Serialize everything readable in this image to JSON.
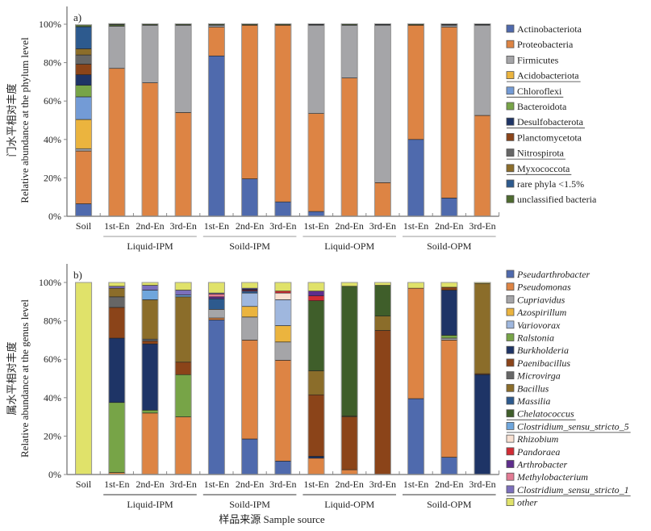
{
  "xlabel": "样品来源 Sample source",
  "categories": [
    "Soil",
    "1st-En",
    "2nd-En",
    "3rd-En",
    "1st-En",
    "2nd-En",
    "3rd-En",
    "1st-En",
    "2nd-En",
    "3rd-En",
    "1st-En",
    "2nd-En",
    "3rd-En"
  ],
  "groups": [
    {
      "label": "Liquid-IPM",
      "from": 1,
      "to": 3
    },
    {
      "label": "Soild-IPM",
      "from": 4,
      "to": 6
    },
    {
      "label": "Liquid-OPM",
      "from": 7,
      "to": 9
    },
    {
      "label": "Soild-OPM",
      "from": 10,
      "to": 12
    }
  ],
  "chart_data": [
    {
      "type": "bar",
      "stacked": true,
      "panel_label": "a)",
      "title": "",
      "ylabel_cn": "门水平相对丰度",
      "ylabel": "Relative abundance at the phylum level",
      "xlabel": "样品来源 Sample source",
      "ylim": [
        0,
        100
      ],
      "yticks": [
        "0%",
        "20%",
        "40%",
        "60%",
        "80%",
        "100%"
      ],
      "legend_position": "right",
      "categories": [
        "Soil",
        "1st-En",
        "2nd-En",
        "3rd-En",
        "1st-En",
        "2nd-En",
        "3rd-En",
        "1st-En",
        "2nd-En",
        "3rd-En",
        "1st-En",
        "2nd-En",
        "3rd-En"
      ],
      "series": [
        {
          "name": "Actinobacteriota",
          "color": "#4f6aad",
          "underline": false,
          "values": [
            6.5,
            0,
            0,
            0,
            83.5,
            19.5,
            7.5,
            2.5,
            0,
            0,
            40,
            9.5,
            0
          ]
        },
        {
          "name": "Proteobacteria",
          "color": "#dd8444",
          "underline": false,
          "values": [
            27.5,
            77,
            69.5,
            54,
            15,
            80,
            92,
            51,
            72,
            17.5,
            59.5,
            89,
            52.5
          ]
        },
        {
          "name": "Firmicutes",
          "color": "#a5a5a8",
          "underline": false,
          "values": [
            1.2,
            22,
            30,
            45.5,
            1,
            0,
            0,
            46,
            27.5,
            82,
            0,
            1,
            47
          ]
        },
        {
          "name": "Acidobacteriota",
          "color": "#ebb43e",
          "underline": true,
          "values": [
            15.2,
            0,
            0,
            0,
            0,
            0,
            0,
            0,
            0,
            0,
            0,
            0,
            0
          ]
        },
        {
          "name": "Chloroflexi",
          "color": "#739bd6",
          "underline": true,
          "values": [
            11.8,
            0,
            0,
            0,
            0,
            0,
            0,
            0,
            0,
            0,
            0,
            0,
            0
          ]
        },
        {
          "name": "Bacteroidota",
          "color": "#77a447",
          "underline": false,
          "values": [
            6,
            0.5,
            0,
            0,
            0,
            0,
            0,
            0,
            0,
            0,
            0,
            0,
            0
          ]
        },
        {
          "name": "Desulfobacterota",
          "color": "#1e3466",
          "underline": true,
          "values": [
            5.5,
            0,
            0,
            0,
            0,
            0,
            0,
            0.3,
            0,
            0.3,
            0,
            0.2,
            0.3
          ]
        },
        {
          "name": "Planctomycetota",
          "color": "#8b4419",
          "underline": false,
          "values": [
            5.5,
            0,
            0,
            0,
            0,
            0,
            0,
            0,
            0,
            0,
            0,
            0,
            0
          ]
        },
        {
          "name": "Nitrospirota",
          "color": "#666666",
          "underline": true,
          "values": [
            4.8,
            0,
            0,
            0,
            0,
            0,
            0,
            0,
            0,
            0,
            0,
            0,
            0
          ]
        },
        {
          "name": "Myxococcota",
          "color": "#8b6d2a",
          "underline": true,
          "values": [
            3.2,
            0,
            0,
            0,
            0,
            0,
            0,
            0,
            0,
            0,
            0,
            0,
            0
          ]
        },
        {
          "name": "rare phyla <1.5%",
          "color": "#2d5a8e",
          "underline": false,
          "values": [
            11.5,
            0.3,
            0.2,
            0.2,
            0.2,
            0.2,
            0.2,
            0.2,
            0.2,
            0.2,
            0.2,
            0.3,
            0.2
          ]
        },
        {
          "name": "unclassified bacteria",
          "color": "#4e6b2f",
          "underline": false,
          "values": [
            1,
            0.5,
            0.5,
            0.5,
            0.5,
            0.5,
            0.5,
            0.2,
            0.5,
            0.2,
            0.5,
            0.2,
            0.2
          ]
        }
      ]
    },
    {
      "type": "bar",
      "stacked": true,
      "panel_label": "b)",
      "title": "",
      "ylabel_cn": "属水平相对丰度",
      "ylabel": "Relative abundance at the genus level",
      "xlabel": "样品来源 Sample source",
      "ylim": [
        0,
        100
      ],
      "yticks": [
        "0%",
        "20%",
        "40%",
        "60%",
        "80%",
        "100%"
      ],
      "legend_position": "right",
      "categories": [
        "Soil",
        "1st-En",
        "2nd-En",
        "3rd-En",
        "1st-En",
        "2nd-En",
        "3rd-En",
        "1st-En",
        "2nd-En",
        "3rd-En",
        "1st-En",
        "2nd-En",
        "3rd-En"
      ],
      "series": [
        {
          "name": "Pseudarthrobacter",
          "color": "#4f6aad",
          "underline": false,
          "values": [
            0,
            0,
            0,
            0,
            80.5,
            18.5,
            7,
            0,
            0,
            0,
            39.5,
            9,
            0
          ]
        },
        {
          "name": "Pseudomonas",
          "color": "#dd8444",
          "underline": false,
          "values": [
            0,
            1,
            32,
            30,
            1,
            51.5,
            52.5,
            8.5,
            2.5,
            0,
            57.5,
            61,
            0
          ]
        },
        {
          "name": "Cupriavidus",
          "color": "#a5a5a8",
          "underline": false,
          "values": [
            0,
            0,
            0,
            0,
            4.5,
            12,
            9.5,
            0,
            0,
            0,
            0,
            1,
            0
          ]
        },
        {
          "name": "Azospirillum",
          "color": "#ebb43e",
          "underline": false,
          "values": [
            0,
            0,
            0,
            0,
            0,
            5.5,
            8.5,
            0,
            0,
            0,
            0,
            0,
            0
          ]
        },
        {
          "name": "Variovorax",
          "color": "#9fb7de",
          "underline": false,
          "values": [
            0,
            0,
            0,
            0,
            0,
            7,
            13.5,
            0,
            0,
            0,
            0,
            0,
            0
          ]
        },
        {
          "name": "Ralstonia",
          "color": "#77a447",
          "underline": false,
          "values": [
            0,
            36.5,
            1.5,
            22,
            0,
            0,
            0,
            0,
            0,
            0,
            0,
            1.5,
            0
          ]
        },
        {
          "name": "Burkholderia",
          "color": "#1e3466",
          "underline": false,
          "values": [
            0,
            33.5,
            34.5,
            0,
            0,
            0,
            0,
            1,
            0,
            0,
            0,
            23.5,
            52
          ]
        },
        {
          "name": "Paenibacillus",
          "color": "#8b4419",
          "underline": false,
          "values": [
            0,
            16,
            1.5,
            6.5,
            0,
            0,
            0,
            32,
            27.5,
            75,
            0,
            1.5,
            0.5
          ]
        },
        {
          "name": "Microvirga",
          "color": "#666666",
          "underline": false,
          "values": [
            0,
            5.5,
            1,
            0,
            0,
            0,
            0,
            0,
            0,
            0,
            0,
            0,
            0
          ]
        },
        {
          "name": "Bacillus",
          "color": "#8b6d2a",
          "underline": false,
          "values": [
            0,
            4.5,
            20.5,
            34,
            0,
            0,
            0,
            12.5,
            0.5,
            7.5,
            0,
            0,
            47
          ]
        },
        {
          "name": "Massilia",
          "color": "#2d5a8e",
          "underline": false,
          "values": [
            0,
            0,
            0,
            0,
            5.5,
            1,
            0,
            0,
            0,
            0,
            0,
            0,
            0
          ]
        },
        {
          "name": "Chelatococcus",
          "color": "#3f5e2a",
          "underline": true,
          "values": [
            0,
            0,
            0,
            0,
            0,
            0,
            0,
            36.5,
            67.5,
            16,
            0,
            0,
            0
          ]
        },
        {
          "name": "Clostridium_sensu_stricto_5",
          "color": "#6fa6dc",
          "underline": true,
          "values": [
            0,
            0,
            5,
            1,
            0,
            0,
            0,
            0,
            0,
            0,
            0,
            0,
            0
          ]
        },
        {
          "name": "Rhizobium",
          "color": "#f8e0d1",
          "underline": false,
          "values": [
            0,
            0,
            0,
            0,
            0,
            0,
            3.5,
            0,
            0,
            0,
            0,
            0,
            0
          ]
        },
        {
          "name": "Pandoraea",
          "color": "#d22b34",
          "underline": false,
          "values": [
            0,
            0,
            0,
            0,
            0,
            0.5,
            1,
            2.5,
            0,
            0,
            0,
            0,
            0
          ]
        },
        {
          "name": "Arthrobacter",
          "color": "#5e2d8c",
          "underline": false,
          "values": [
            0,
            0,
            0,
            0,
            1,
            0.5,
            0,
            2.5,
            0,
            0,
            0,
            0,
            0
          ]
        },
        {
          "name": "Methylobacterium",
          "color": "#e27b94",
          "underline": false,
          "values": [
            0,
            0,
            0,
            0,
            1.5,
            0,
            0,
            0,
            0,
            0,
            0,
            0,
            0
          ]
        },
        {
          "name": "Clostridium_sensu_stricto_1",
          "color": "#7b6fbc",
          "underline": true,
          "values": [
            0,
            1,
            2.5,
            2.5,
            0.5,
            0.5,
            0,
            0,
            0,
            0,
            0,
            0,
            0
          ]
        },
        {
          "name": "other",
          "color": "#e0e26a",
          "underline": false,
          "values": [
            100,
            2,
            1.5,
            4,
            5.5,
            3,
            4.5,
            4.5,
            2,
            1.5,
            3,
            2.5,
            0.5
          ]
        }
      ]
    }
  ]
}
